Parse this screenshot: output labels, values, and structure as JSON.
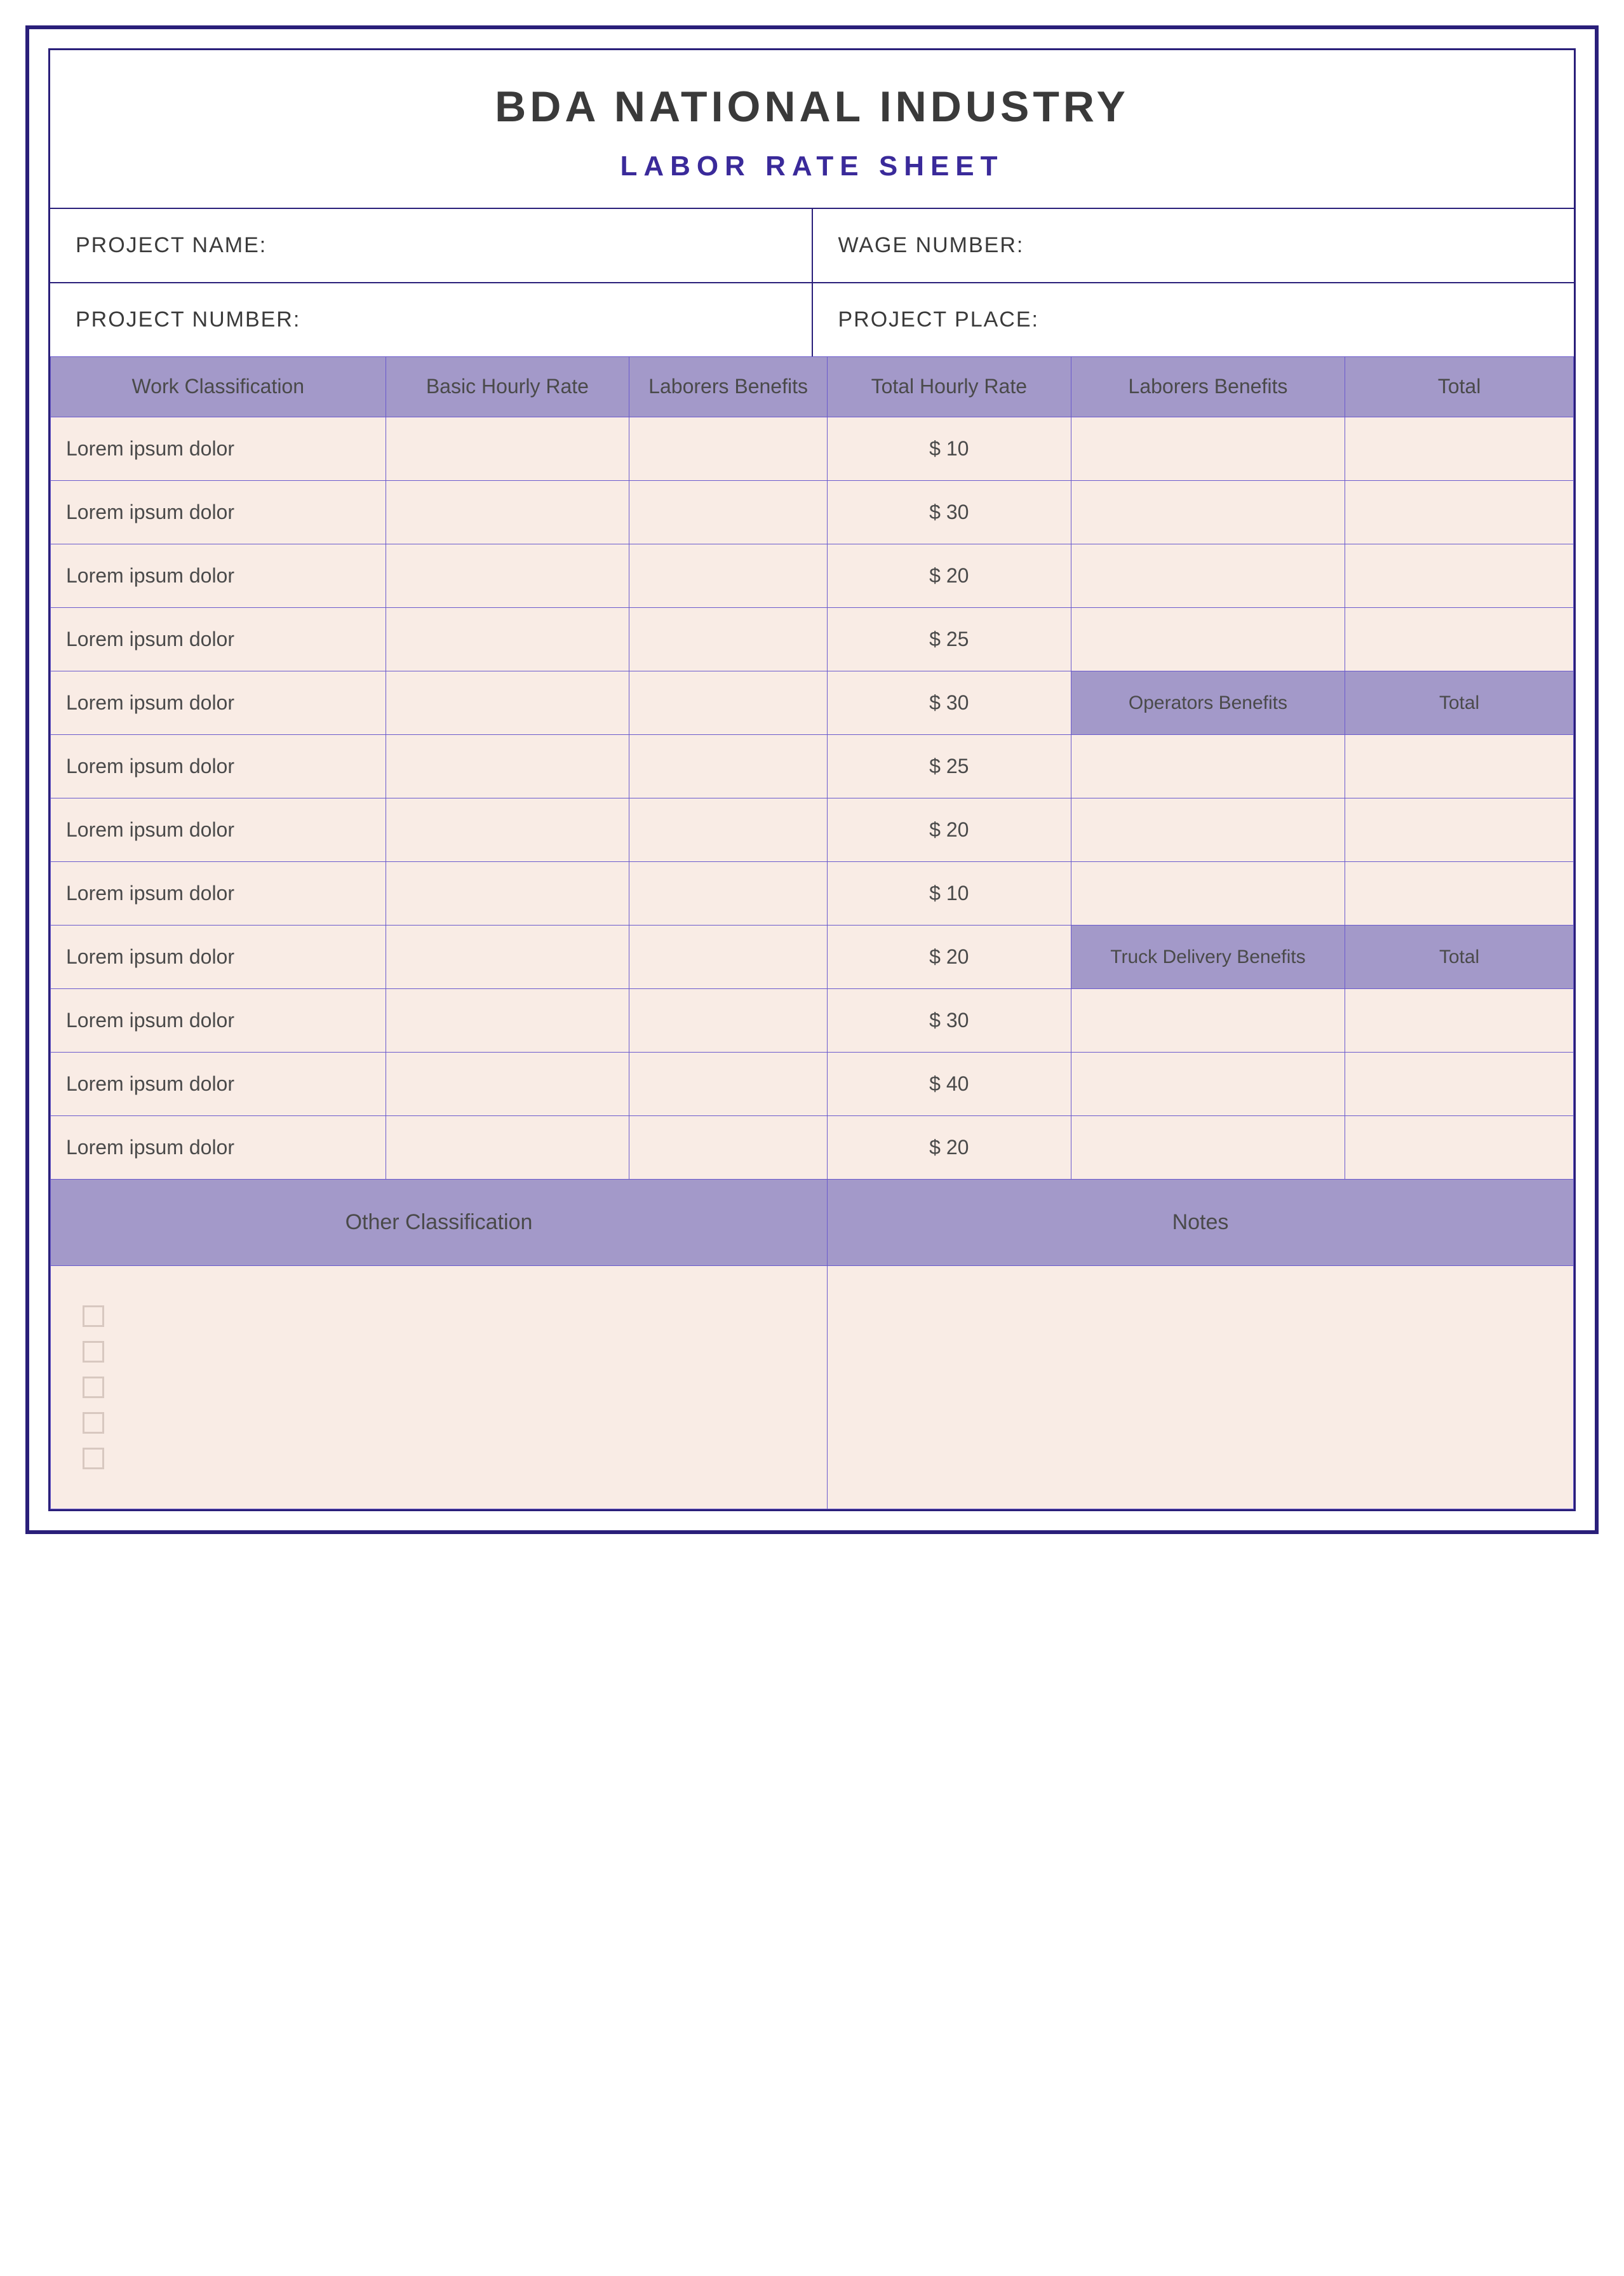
{
  "title": "BDA NATIONAL INDUSTRY",
  "subtitle": "LABOR RATE SHEET",
  "info": {
    "project_name_label": "PROJECT NAME:",
    "wage_number_label": "WAGE NUMBER:",
    "project_number_label": "PROJECT NUMBER:",
    "project_place_label": "PROJECT PLACE:"
  },
  "columns": {
    "c1": "Work Classification",
    "c2": "Basic Hourly Rate",
    "c3": "Laborers Benefits",
    "c4": "Total Hourly Rate",
    "c5": "Laborers Benefits",
    "c6": "Total"
  },
  "sub_headers": {
    "operators": "Operators Benefits",
    "operators_total": "Total",
    "truck": "Truck Delivery Benefits",
    "truck_total": "Total"
  },
  "rows": [
    {
      "classification": "Lorem ipsum dolor",
      "total_hourly": "$ 10"
    },
    {
      "classification": "Lorem ipsum dolor",
      "total_hourly": "$ 30"
    },
    {
      "classification": "Lorem ipsum dolor",
      "total_hourly": "$ 20"
    },
    {
      "classification": "Lorem ipsum dolor",
      "total_hourly": "$ 25"
    },
    {
      "classification": "Lorem ipsum dolor",
      "total_hourly": "$ 30"
    },
    {
      "classification": "Lorem ipsum dolor",
      "total_hourly": "$ 25"
    },
    {
      "classification": "Lorem ipsum dolor",
      "total_hourly": "$ 20"
    },
    {
      "classification": "Lorem ipsum dolor",
      "total_hourly": "$ 10"
    },
    {
      "classification": "Lorem ipsum dolor",
      "total_hourly": "$ 20"
    },
    {
      "classification": "Lorem ipsum dolor",
      "total_hourly": "$ 30"
    },
    {
      "classification": "Lorem ipsum dolor",
      "total_hourly": "$ 40"
    },
    {
      "classification": "Lorem ipsum dolor",
      "total_hourly": "$ 20"
    }
  ],
  "footer": {
    "other_classification": "Other Classification",
    "notes": "Notes"
  },
  "checkbox_count": 5,
  "colors": {
    "border": "#2a1f7a",
    "header_bg": "#a399c9",
    "cell_bg": "#f9ece5",
    "text": "#4a4a4a",
    "subtitle": "#3a2a9a"
  }
}
